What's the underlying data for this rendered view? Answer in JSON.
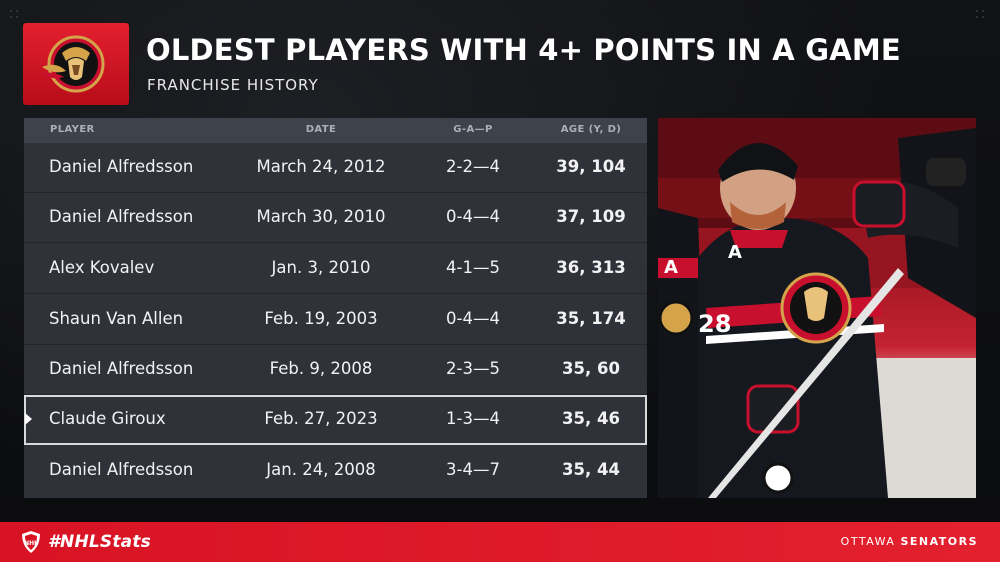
{
  "header": {
    "title": "OLDEST PLAYERS WITH 4+ POINTS IN A GAME",
    "subtitle": "FRANCHISE HISTORY"
  },
  "table": {
    "columns": [
      "PLAYER",
      "DATE",
      "G-A—P",
      "AGE (Y, D)"
    ],
    "rows": [
      {
        "player": "Daniel Alfredsson",
        "date": "March 24, 2012",
        "gap": "2-2—4",
        "age": "39, 104"
      },
      {
        "player": "Daniel Alfredsson",
        "date": "March 30, 2010",
        "gap": "0-4—4",
        "age": "37, 109"
      },
      {
        "player": "Alex Kovalev",
        "date": "Jan. 3, 2010",
        "gap": "4-1—5",
        "age": "36, 313"
      },
      {
        "player": "Shaun Van Allen",
        "date": "Feb. 19, 2003",
        "gap": "0-4—4",
        "age": "35, 174"
      },
      {
        "player": "Daniel Alfredsson",
        "date": "Feb. 9, 2008",
        "gap": "2-3—5",
        "age": "35, 60"
      },
      {
        "player": "Claude Giroux",
        "date": "Feb. 27, 2023",
        "gap": "1-3—4",
        "age": "35, 46",
        "highlighted": true
      },
      {
        "player": "Daniel Alfredsson",
        "date": "Jan. 24, 2008",
        "gap": "3-4—7",
        "age": "35, 44"
      }
    ]
  },
  "photo": {
    "jersey_number": "28",
    "captain_letter": "A"
  },
  "footer": {
    "hashtag": "#NHLStats",
    "team_prefix": "OTTAWA",
    "team_suffix": "SENATORS"
  },
  "colors": {
    "brand_red": "#e3202e",
    "table_bg": "#2f3238",
    "header_bg": "#3e434b"
  },
  "icons": {
    "team_logo": "senators-logo-icon",
    "league_logo": "nhl-shield-icon",
    "row_pointer": "triangle-right-icon"
  }
}
